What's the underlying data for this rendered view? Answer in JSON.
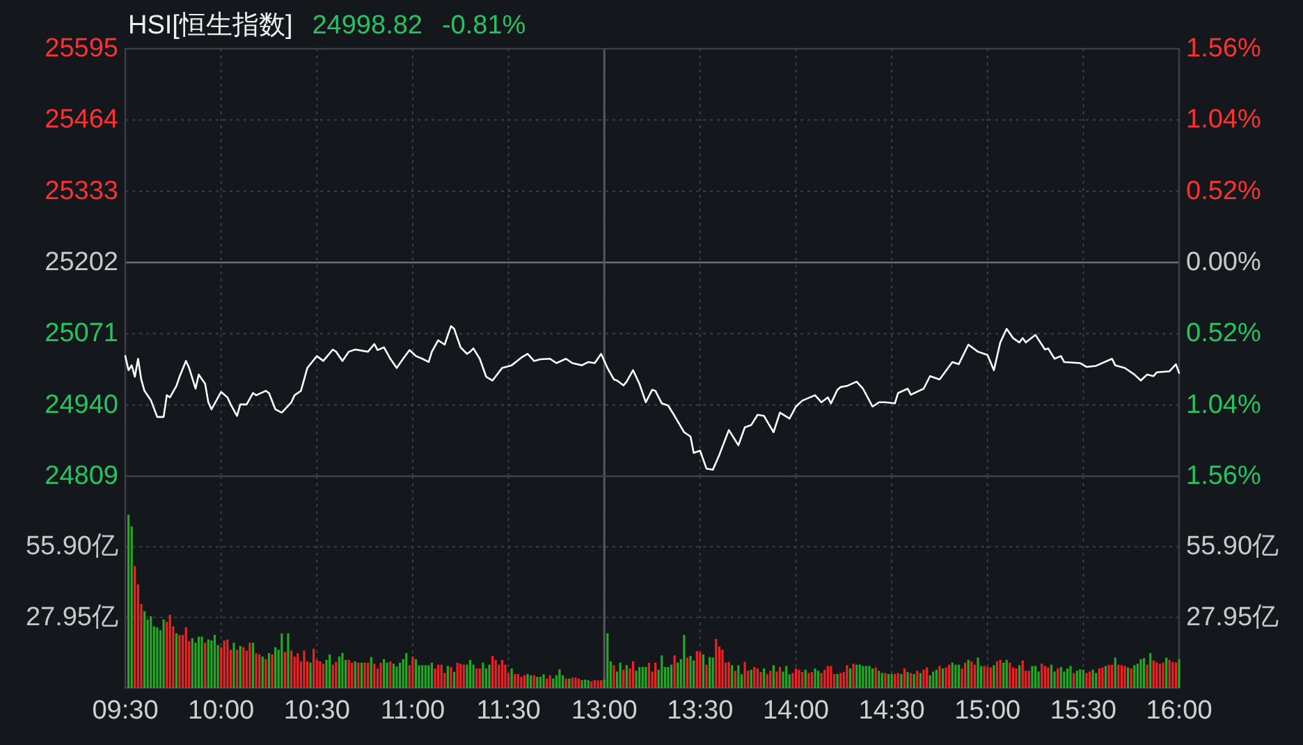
{
  "chart_data": [
    {
      "type": "line",
      "title": "HSI[恒生指数]",
      "annotations": [
        "24998.82",
        "-0.81%"
      ],
      "categories": [
        "09:30",
        null,
        null,
        null,
        null,
        null,
        null,
        null,
        null,
        null,
        null,
        null,
        null,
        null,
        null,
        null,
        null,
        null,
        null,
        null,
        null,
        null,
        null,
        null,
        null,
        null,
        null,
        null,
        null,
        null,
        "10:00",
        null,
        null,
        null,
        null,
        null,
        null,
        null,
        null,
        null,
        null,
        null,
        null,
        null,
        null,
        null,
        null,
        null,
        null,
        null,
        null,
        null,
        null,
        null,
        null,
        null,
        null,
        null,
        null,
        null,
        "10:30",
        null,
        null,
        null,
        null,
        null,
        null,
        null,
        null,
        null,
        null,
        null,
        null,
        null,
        null,
        null,
        null,
        null,
        null,
        null,
        null,
        null,
        null,
        null,
        null,
        null,
        null,
        null,
        null,
        null,
        "11:00",
        null,
        null,
        null,
        null,
        null,
        null,
        null,
        null,
        null,
        null,
        null,
        null,
        null,
        null,
        null,
        null,
        null,
        null,
        null,
        null,
        null,
        null,
        null,
        null,
        null,
        null,
        null,
        null,
        null,
        "11:30",
        null,
        null,
        null,
        null,
        null,
        null,
        null,
        null,
        null,
        null,
        null,
        null,
        null,
        null,
        null,
        null,
        null,
        null,
        null,
        null,
        null,
        null,
        null,
        null,
        null,
        null,
        null,
        null,
        null,
        "13:00",
        null,
        null,
        null,
        null,
        null,
        null,
        null,
        null,
        null,
        null,
        null,
        null,
        null,
        null,
        null,
        null,
        null,
        null,
        null,
        null,
        null,
        null,
        null,
        null,
        null,
        null,
        null,
        null,
        null,
        "13:30",
        null,
        null,
        null,
        null,
        null,
        null,
        null,
        null,
        null,
        null,
        null,
        null,
        null,
        null,
        null,
        null,
        null,
        null,
        null,
        null,
        null,
        null,
        null,
        null,
        null,
        null,
        null,
        null,
        null,
        "14:00",
        null,
        null,
        null,
        null,
        null,
        null,
        null,
        null,
        null,
        null,
        null,
        null,
        null,
        null,
        null,
        null,
        null,
        null,
        null,
        null,
        null,
        null,
        null,
        null,
        null,
        null,
        null,
        null,
        null,
        "14:30",
        null,
        null,
        null,
        null,
        null,
        null,
        null,
        null,
        null,
        null,
        null,
        null,
        null,
        null,
        null,
        null,
        null,
        null,
        null,
        null,
        null,
        null,
        null,
        null,
        null,
        null,
        null,
        null,
        null,
        "15:00",
        null,
        null,
        null,
        null,
        null,
        null,
        null,
        null,
        null,
        null,
        null,
        null,
        null,
        null,
        null,
        null,
        null,
        null,
        null,
        null,
        null,
        null,
        null,
        null,
        null,
        null,
        null,
        null,
        null,
        "15:30",
        null,
        null,
        null,
        null,
        null,
        null,
        null,
        null,
        null,
        null,
        null,
        null,
        null,
        null,
        null,
        null,
        null,
        null,
        null,
        null,
        null,
        null,
        null,
        null,
        null,
        null,
        null,
        null,
        null,
        "16:00"
      ],
      "ylim": [
        24809,
        25595
      ],
      "yticks": [
        25595,
        25464,
        25333,
        25202,
        25071,
        24940,
        24809
      ],
      "y2lim": [
        -1.56,
        1.56
      ],
      "y2ticks": [
        {
          "value": 1.56,
          "label": "1.56%"
        },
        {
          "value": 1.04,
          "label": "1.04%"
        },
        {
          "value": 0.52,
          "label": "0.52%"
        },
        {
          "value": 0,
          "label": "0.00%"
        },
        {
          "value": -0.52,
          "label": "0.52%"
        },
        {
          "value": -1.04,
          "label": "1.04%"
        },
        {
          "value": -1.56,
          "label": "1.56%"
        }
      ],
      "grid": true,
      "tick_labels": "y",
      "ref_lines": [
        {
          "axis": "y",
          "value": 25202
        },
        {
          "axis": "x",
          "value": "13:00"
        }
      ],
      "series": [
        {
          "color": "#ffffff",
          "values": [
            25030,
            25004,
            25013,
            24992,
            25025,
            24987,
            24966,
            null,
            24949,
            null,
            24918,
            null,
            24918,
            24958,
            24954,
            null,
            24975,
            24992,
            null,
            25021,
            25008,
            null,
            24970,
            24996,
            null,
            24979,
            24945,
            24932,
            null,
            null,
            24964,
            null,
            24954,
            24941,
            null,
            24920,
            24941,
            null,
            24941,
            null,
            24962,
            24958,
            null,
            null,
            24966,
            24962,
            null,
            24932,
            null,
            24926,
            null,
            null,
            24945,
            24958,
            null,
            24966,
            null,
            25008,
            null,
            null,
            25030,
            null,
            25021,
            null,
            null,
            25042,
            25038,
            null,
            25021,
            null,
            25038,
            null,
            25042,
            null,
            null,
            null,
            25038,
            null,
            25052,
            25041,
            null,
            25046,
            null,
            25025,
            null,
            25008,
            null,
            25025,
            null,
            25041,
            null,
            25030,
            null,
            25025,
            null,
            25019,
            25038,
            null,
            25059,
            null,
            25051,
            null,
            25085,
            25080,
            null,
            25046,
            null,
            25034,
            25038,
            25044,
            null,
            25025,
            null,
            24992,
            null,
            24985,
            null,
            null,
            25008,
            null,
            null,
            25013,
            null,
            null,
            25027,
            null,
            25034,
            null,
            25021,
            null,
            25024,
            null,
            null,
            25025,
            null,
            25017,
            null,
            null,
            25025,
            null,
            25017,
            null,
            null,
            25013,
            null,
            25019,
            null,
            25017,
            null,
            25034,
            null,
            25008,
            null,
            24987,
            24985,
            null,
            24976,
            24983,
            null,
            25004,
            null,
            24979,
            null,
            24945,
            null,
            24968,
            24966,
            null,
            24943,
            null,
            24939,
            null,
            24920,
            null,
            null,
            24890,
            null,
            24882,
            24852,
            null,
            24856,
            null,
            24823,
            null,
            24821,
            null,
            24848,
            null,
            null,
            24894,
            null,
            null,
            24866,
            null,
            24899,
            null,
            24903,
            null,
            24922,
            null,
            24920,
            null,
            null,
            24890,
            null,
            24926,
            null,
            null,
            24915,
            null,
            24937,
            null,
            24948,
            null,
            null,
            null,
            24958,
            null,
            24945,
            null,
            24954,
            24943,
            null,
            24968,
            24973,
            null,
            24975,
            null,
            null,
            24983,
            null,
            24970,
            null,
            null,
            24937,
            null,
            24945,
            null,
            24945,
            null,
            null,
            24943,
            24962,
            null,
            null,
            24970,
            24959,
            null,
            null,
            null,
            24970,
            null,
            24993,
            null,
            null,
            24987,
            null,
            null,
            null,
            25019,
            null,
            25015,
            null,
            null,
            25051,
            null,
            null,
            25038,
            null,
            null,
            25032,
            null,
            25004,
            null,
            25055,
            null,
            25080,
            null,
            25063,
            null,
            25055,
            25063,
            25055,
            null,
            null,
            25069,
            null,
            null,
            25042,
            25044,
            null,
            25025,
            null,
            25030,
            25019,
            null,
            null,
            null,
            null,
            25017,
            null,
            25010,
            null,
            null,
            25012,
            null,
            null,
            null,
            null,
            25025,
            25013,
            null,
            null,
            25008,
            null,
            null,
            24996,
            null,
            24985,
            null,
            24996,
            null,
            24993,
            25000,
            null,
            null,
            null,
            25002,
            null,
            25015,
            24999
          ]
        }
      ]
    },
    {
      "type": "bar",
      "categories": [
        "09:30",
        null,
        null,
        null,
        null,
        null,
        null,
        null,
        null,
        null,
        null,
        null,
        null,
        null,
        null,
        null,
        null,
        null,
        null,
        null,
        null,
        null,
        null,
        null,
        null,
        null,
        null,
        null,
        null,
        null,
        "10:00",
        null,
        null,
        null,
        null,
        null,
        null,
        null,
        null,
        null,
        null,
        null,
        null,
        null,
        null,
        null,
        null,
        null,
        null,
        null,
        null,
        null,
        null,
        null,
        null,
        null,
        null,
        null,
        null,
        null,
        "10:30",
        null,
        null,
        null,
        null,
        null,
        null,
        null,
        null,
        null,
        null,
        null,
        null,
        null,
        null,
        null,
        null,
        null,
        null,
        null,
        null,
        null,
        null,
        null,
        null,
        null,
        null,
        null,
        null,
        null,
        "11:00",
        null,
        null,
        null,
        null,
        null,
        null,
        null,
        null,
        null,
        null,
        null,
        null,
        null,
        null,
        null,
        null,
        null,
        null,
        null,
        null,
        null,
        null,
        null,
        null,
        null,
        null,
        null,
        null,
        null,
        "11:30",
        null,
        null,
        null,
        null,
        null,
        null,
        null,
        null,
        null,
        null,
        null,
        null,
        null,
        null,
        null,
        null,
        null,
        null,
        null,
        null,
        null,
        null,
        null,
        null,
        null,
        null,
        null,
        null,
        null,
        "13:00",
        null,
        null,
        null,
        null,
        null,
        null,
        null,
        null,
        null,
        null,
        null,
        null,
        null,
        null,
        null,
        null,
        null,
        null,
        null,
        null,
        null,
        null,
        null,
        null,
        null,
        null,
        null,
        null,
        null,
        "13:30",
        null,
        null,
        null,
        null,
        null,
        null,
        null,
        null,
        null,
        null,
        null,
        null,
        null,
        null,
        null,
        null,
        null,
        null,
        null,
        null,
        null,
        null,
        null,
        null,
        null,
        null,
        null,
        null,
        null,
        "14:00",
        null,
        null,
        null,
        null,
        null,
        null,
        null,
        null,
        null,
        null,
        null,
        null,
        null,
        null,
        null,
        null,
        null,
        null,
        null,
        null,
        null,
        null,
        null,
        null,
        null,
        null,
        null,
        null,
        null,
        "14:30",
        null,
        null,
        null,
        null,
        null,
        null,
        null,
        null,
        null,
        null,
        null,
        null,
        null,
        null,
        null,
        null,
        null,
        null,
        null,
        null,
        null,
        null,
        null,
        null,
        null,
        null,
        null,
        null,
        null,
        "15:00",
        null,
        null,
        null,
        null,
        null,
        null,
        null,
        null,
        null,
        null,
        null,
        null,
        null,
        null,
        null,
        null,
        null,
        null,
        null,
        null,
        null,
        null,
        null,
        null,
        null,
        null,
        null,
        null,
        null,
        "15:30",
        null,
        null,
        null,
        null,
        null,
        null,
        null,
        null,
        null,
        null,
        null,
        null,
        null,
        null,
        null,
        null,
        null,
        null,
        null,
        null,
        null,
        null,
        null,
        null,
        null,
        null,
        null,
        null,
        null,
        "16:00"
      ],
      "ylim": [
        0,
        83.85
      ],
      "yticks": [
        {
          "value": 55.9,
          "label": "55.90亿"
        },
        {
          "value": 27.95,
          "label": "27.95亿"
        }
      ],
      "y2lim": [
        0,
        83.85
      ],
      "y2ticks": [
        {
          "value": 55.9,
          "label": "55.90亿"
        },
        {
          "value": 27.95,
          "label": "27.95亿"
        }
      ],
      "grid": true,
      "ref_lines": [
        {
          "axis": "x",
          "value": "13:00"
        }
      ],
      "series": [
        {
          "values": [
            null,
            68.6,
            64.0,
            48.3,
            41.0,
            33.2,
            30.4,
            27.1,
            28.4,
            24.4,
            24.0,
            22.9,
            27.1,
            26.2,
            29.0,
            24.4,
            21.6,
            21.0,
            21.0,
            24.0,
            18.5,
            19.7,
            17.9,
            20.3,
            20.3,
            17.9,
            19.2,
            18.8,
            21.0,
            17.0,
            16.1,
            18.8,
            19.2,
            15.1,
            17.9,
            15.1,
            16.6,
            16.1,
            14.8,
            17.9,
            17.9,
            13.7,
            13.3,
            12.4,
            11.4,
            13.8,
            13.3,
            16.1,
            15.1,
            21.6,
            14.2,
            21.6,
            14.8,
            12.4,
            13.7,
            10.5,
            14.8,
            10.5,
            10.0,
            15.5,
            11.1,
            10.5,
            9.6,
            11.1,
            13.3,
            9.2,
            10.3,
            12.4,
            13.8,
            11.1,
            11.1,
            10.0,
            10.5,
            10.0,
            10.0,
            10.0,
            10.0,
            12.2,
            9.6,
            7.7,
            10.0,
            11.4,
            10.0,
            10.5,
            9.6,
            8.5,
            10.0,
            11.4,
            13.8,
            9.0,
            12.4,
            11.4,
            9.0,
            9.0,
            9.0,
            9.0,
            10.0,
            7.7,
            9.2,
            9.2,
            5.9,
            8.7,
            8.3,
            6.3,
            10.0,
            9.6,
            9.2,
            9.2,
            11.1,
            9.2,
            7.7,
            7.7,
            10.0,
            7.7,
            9.2,
            12.7,
            11.1,
            9.2,
            11.1,
            9.2,
            5.9,
            7.7,
            5.5,
            5.5,
            4.4,
            5.0,
            5.5,
            5.0,
            5.0,
            4.4,
            4.4,
            5.4,
            3.7,
            5.0,
            3.7,
            5.0,
            7.4,
            5.0,
            3.7,
            3.7,
            4.1,
            4.1,
            3.7,
            3.1,
            3.3,
            3.1,
            2.6,
            3.1,
            3.0,
            3.0,
            3.3,
            21.6,
            10.5,
            9.0,
            6.5,
            10.0,
            7.2,
            9.0,
            7.7,
            10.5,
            6.8,
            8.3,
            8.3,
            8.3,
            10.0,
            6.5,
            10.0,
            7.2,
            12.9,
            8.3,
            8.3,
            9.2,
            12.9,
            10.0,
            11.4,
            21.0,
            12.0,
            12.7,
            10.9,
            14.6,
            14.2,
            13.3,
            9.2,
            12.2,
            12.0,
            19.4,
            16.4,
            15.1,
            10.0,
            10.3,
            9.0,
            6.8,
            9.0,
            5.4,
            10.3,
            6.8,
            7.2,
            8.3,
            7.7,
            6.3,
            7.7,
            5.4,
            6.8,
            9.0,
            6.5,
            8.3,
            6.5,
            8.7,
            5.4,
            5.9,
            7.7,
            7.2,
            6.3,
            7.2,
            5.9,
            6.3,
            7.7,
            6.8,
            5.9,
            7.2,
            8.7,
            8.7,
            5.5,
            5.5,
            5.9,
            6.3,
            9.0,
            7.7,
            9.6,
            9.2,
            9.2,
            8.7,
            8.7,
            8.7,
            7.7,
            8.1,
            6.8,
            5.9,
            5.9,
            5.5,
            5.5,
            5.5,
            5.9,
            5.5,
            7.7,
            6.3,
            5.9,
            5.5,
            6.8,
            5.9,
            7.2,
            8.1,
            5.0,
            6.5,
            7.2,
            8.7,
            7.7,
            8.1,
            9.2,
            10.0,
            9.2,
            9.2,
            7.7,
            10.0,
            11.1,
            10.5,
            9.2,
            12.0,
            8.7,
            8.7,
            8.3,
            8.1,
            9.0,
            10.5,
            11.1,
            10.0,
            11.1,
            10.0,
            8.1,
            7.7,
            9.0,
            10.9,
            6.8,
            6.8,
            8.7,
            8.7,
            6.5,
            9.6,
            8.7,
            8.1,
            9.2,
            6.5,
            7.7,
            8.3,
            6.5,
            7.7,
            8.7,
            5.9,
            6.8,
            7.4,
            7.2,
            5.9,
            6.5,
            7.2,
            5.9,
            7.7,
            8.1,
            8.7,
            9.2,
            9.2,
            12.0,
            9.2,
            9.0,
            8.7,
            8.1,
            7.7,
            9.0,
            9.6,
            11.4,
            11.8,
            9.2,
            13.8,
            10.9,
            10.1,
            9.6,
            10.0,
            12.0,
            11.1,
            10.3,
            10.1,
            11.4
          ],
          "colors": [
            null,
            "#22aa22",
            "#22aa22",
            "#ee2222",
            "#ee2222",
            "#ee2222",
            "#22aa22",
            "#22aa22",
            "#22aa22",
            "#22aa22",
            "#22aa22",
            "#22aa22",
            "#22aa22",
            "#ee2222",
            "#ee2222",
            "#ee2222",
            "#22aa22",
            "#ee2222",
            "#ee2222",
            "#ee2222",
            "#ee2222",
            "#22aa22",
            "#22aa22",
            "#22aa22",
            "#22aa22",
            "#ee2222",
            "#22aa22",
            "#22aa22",
            "#22aa22",
            "#22aa22",
            "#ee2222",
            "#ee2222",
            "#ee2222",
            "#ee2222",
            "#22aa22",
            "#ee2222",
            "#22aa22",
            "#ee2222",
            "#ee2222",
            "#ee2222",
            "#22aa22",
            "#ee2222",
            "#ee2222",
            "#22aa22",
            "#ee2222",
            "#22aa22",
            "#ee2222",
            "#22aa22",
            "#22aa22",
            "#22aa22",
            "#ee2222",
            "#22aa22",
            "#ee2222",
            "#ee2222",
            "#ee2222",
            "#ee2222",
            "#ee2222",
            "#ee2222",
            "#22aa22",
            "#ee2222",
            "#ee2222",
            "#ee2222",
            "#ee2222",
            "#22aa22",
            "#22aa22",
            "#ee2222",
            "#ee2222",
            "#22aa22",
            "#22aa22",
            "#22aa22",
            "#ee2222",
            "#ee2222",
            "#22aa22",
            "#ee2222",
            "#22aa22",
            "#ee2222",
            "#ee2222",
            "#22aa22",
            "#ee2222",
            "#ee2222",
            "#ee2222",
            "#22aa22",
            "#22aa22",
            "#ee2222",
            "#22aa22",
            "#22aa22",
            "#22aa22",
            "#22aa22",
            "#22aa22",
            "#ee2222",
            "#ee2222",
            "#22aa22",
            "#22aa22",
            "#22aa22",
            "#22aa22",
            "#22aa22",
            "#22aa22",
            "#ee2222",
            "#ee2222",
            "#ee2222",
            "#ee2222",
            "#22aa22",
            "#ee2222",
            "#22aa22",
            "#ee2222",
            "#ee2222",
            "#ee2222",
            "#22aa22",
            "#22aa22",
            "#22aa22",
            "#ee2222",
            "#ee2222",
            "#22aa22",
            "#22aa22",
            "#22aa22",
            "#ee2222",
            "#ee2222",
            "#ee2222",
            "#ee2222",
            "#ee2222",
            "#ee2222",
            "#22aa22",
            "#ee2222",
            "#ee2222",
            "#ee2222",
            "#ee2222",
            "#22aa22",
            "#22aa22",
            "#ee2222",
            "#22aa22",
            "#22aa22",
            "#22aa22",
            "#ee2222",
            "#ee2222",
            "#22aa22",
            "#22aa22",
            "#22aa22",
            "#22aa22",
            "#ee2222",
            "#22aa22",
            "#ee2222",
            "#ee2222",
            "#ee2222",
            "#22aa22",
            "#22aa22",
            "#22aa22",
            "#ee2222",
            "#ee2222",
            "#ee2222",
            "#ee2222",
            "#22aa22",
            "#22aa22",
            "#22aa22",
            "#ee2222",
            "#22aa22",
            "#22aa22",
            "#ee2222",
            "#22aa22",
            "#ee2222",
            "#ee2222",
            "#22aa22",
            "#22aa22",
            "#22aa22",
            "#22aa22",
            "#ee2222",
            "#ee2222",
            "#ee2222",
            "#22aa22",
            "#22aa22",
            "#22aa22",
            "#22aa22",
            "#22aa22",
            "#ee2222",
            "#22aa22",
            "#22aa22",
            "#22aa22",
            "#ee2222",
            "#22aa22",
            "#22aa22",
            "#ee2222",
            "#ee2222",
            "#22aa22",
            "#ee2222",
            "#22aa22",
            "#22aa22",
            "#ee2222",
            "#ee2222",
            "#ee2222",
            "#ee2222",
            "#ee2222",
            "#22aa22",
            "#ee2222",
            "#22aa22",
            "#22aa22",
            "#ee2222",
            "#ee2222",
            "#22aa22",
            "#ee2222",
            "#ee2222",
            "#ee2222",
            "#22aa22",
            "#ee2222",
            "#ee2222",
            "#22aa22",
            "#ee2222",
            "#ee2222",
            "#22aa22",
            "#22aa22",
            "#22aa22",
            "#ee2222",
            "#ee2222",
            "#ee2222",
            "#ee2222",
            "#22aa22",
            "#ee2222",
            "#ee2222",
            "#22aa22",
            "#22aa22",
            "#ee2222",
            "#ee2222",
            "#ee2222",
            "#ee2222",
            "#ee2222",
            "#22aa22",
            "#ee2222",
            "#ee2222",
            "#ee2222",
            "#22aa22",
            "#ee2222",
            "#22aa22",
            "#22aa22",
            "#22aa22",
            "#22aa22",
            "#22aa22",
            "#22aa22",
            "#ee2222",
            "#22aa22",
            "#22aa22",
            "#ee2222",
            "#22aa22",
            "#22aa22",
            "#ee2222",
            "#ee2222",
            "#22aa22",
            "#ee2222",
            "#22aa22",
            "#ee2222",
            "#22aa22",
            "#ee2222",
            "#22aa22",
            "#ee2222",
            "#ee2222",
            "#22aa22",
            "#22aa22",
            "#22aa22",
            "#ee2222",
            "#22aa22",
            "#ee2222",
            "#ee2222",
            "#22aa22",
            "#22aa22",
            "#22aa22",
            "#ee2222",
            "#ee2222",
            "#22aa22",
            "#ee2222",
            "#ee2222",
            "#22aa22",
            "#22aa22",
            "#ee2222",
            "#ee2222",
            "#ee2222",
            "#22aa22",
            "#ee2222",
            "#ee2222",
            "#22aa22",
            "#22aa22",
            "#ee2222",
            "#ee2222",
            "#ee2222",
            "#22aa22",
            "#ee2222",
            "#ee2222",
            "#ee2222",
            "#22aa22",
            "#22aa22",
            "#22aa22",
            "#ee2222",
            "#ee2222",
            "#ee2222",
            "#22aa22",
            "#22aa22",
            "#ee2222",
            "#22aa22",
            "#22aa22",
            "#22aa22",
            "#22aa22",
            "#ee2222",
            "#22aa22",
            "#22aa22",
            "#22aa22",
            "#ee2222",
            "#ee2222",
            "#22aa22",
            "#22aa22",
            "#ee2222",
            "#ee2222",
            "#22aa22",
            "#ee2222",
            "#ee2222",
            "#22aa22",
            "#ee2222",
            "#ee2222",
            "#ee2222",
            "#22aa22",
            "#ee2222",
            "#22aa22",
            "#22aa22",
            "#22aa22",
            "#22aa22",
            "#ee2222",
            "#22aa22",
            "#ee2222",
            "#ee2222",
            "#ee2222",
            "#ee2222",
            "#22aa22",
            "#ee2222",
            "#ee2222",
            "#ee2222",
            "#22aa22"
          ]
        }
      ]
    }
  ]
}
